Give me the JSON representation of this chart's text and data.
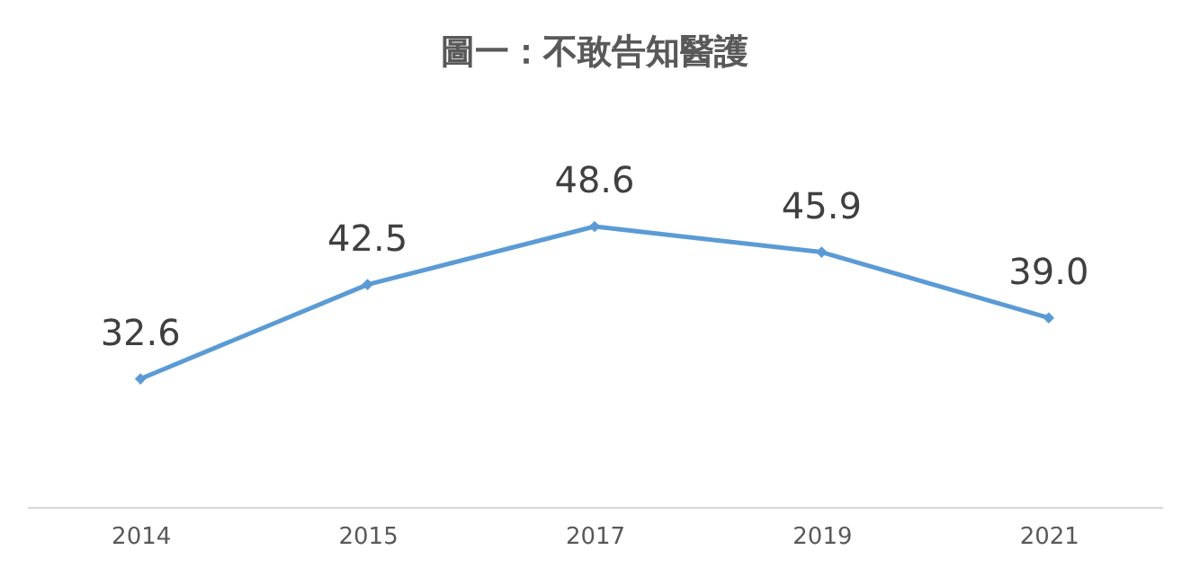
{
  "chart_data": {
    "type": "line",
    "title": "圖一：不敢告知醫護",
    "categories": [
      "2014",
      "2015",
      "2017",
      "2019",
      "2021"
    ],
    "series": [
      {
        "color": "#5b9bd5",
        "values": [
          32.6,
          42.5,
          48.6,
          45.9,
          39.0
        ],
        "value_labels": [
          "32.6",
          "42.5",
          "48.6",
          "45.9",
          "39.0"
        ]
      }
    ],
    "marker": "diamond",
    "line_style": "solid",
    "tick_labels": "x"
  }
}
